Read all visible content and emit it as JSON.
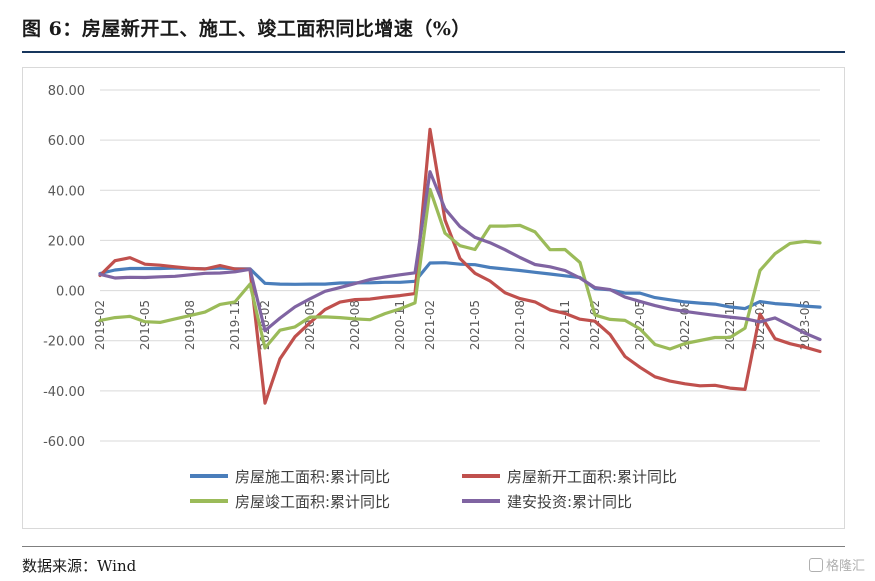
{
  "figure": {
    "title": "图 6：房屋新开工、施工、竣工面积同比增速（%）",
    "source": "数据来源：Wind",
    "watermark": "格隆汇"
  },
  "chart_data": {
    "type": "line",
    "title": "",
    "xlabel": "",
    "ylabel": "",
    "ylim": [
      -60,
      80
    ],
    "yticks": [
      -60,
      -40,
      -20,
      0,
      20,
      40,
      60,
      80
    ],
    "ytick_labels": [
      "-60.00",
      "-40.00",
      "-20.00",
      "0.00",
      "20.00",
      "40.00",
      "60.00",
      "80.00"
    ],
    "xtick_labels": [
      "2019-02",
      "2019-05",
      "2019-08",
      "2019-11",
      "2020-02",
      "2020-05",
      "2020-08",
      "2020-11",
      "2021-02",
      "2021-05",
      "2021-08",
      "2021-11",
      "2022-02",
      "2022-05",
      "2022-08",
      "2022-11",
      "2023-02",
      "2023-05"
    ],
    "x": [
      "2019-02",
      "2019-03",
      "2019-04",
      "2019-05",
      "2019-06",
      "2019-07",
      "2019-08",
      "2019-09",
      "2019-10",
      "2019-11",
      "2019-12",
      "2020-02",
      "2020-03",
      "2020-04",
      "2020-05",
      "2020-06",
      "2020-07",
      "2020-08",
      "2020-09",
      "2020-10",
      "2020-11",
      "2020-12",
      "2021-02",
      "2021-03",
      "2021-04",
      "2021-05",
      "2021-06",
      "2021-07",
      "2021-08",
      "2021-09",
      "2021-10",
      "2021-11",
      "2021-12",
      "2022-02",
      "2022-03",
      "2022-04",
      "2022-05",
      "2022-06",
      "2022-07",
      "2022-08",
      "2022-09",
      "2022-10",
      "2022-11",
      "2022-12",
      "2023-02",
      "2023-03",
      "2023-04",
      "2023-05",
      "2023-06"
    ],
    "grid": true,
    "legend_position": "bottom",
    "series": [
      {
        "name": "房屋施工面积:累计同比",
        "color": "#4a7ebb",
        "values": [
          6.8,
          8.2,
          8.8,
          8.8,
          8.8,
          9.0,
          8.8,
          8.7,
          9.0,
          8.7,
          8.7,
          2.9,
          2.6,
          2.5,
          2.6,
          2.6,
          3.0,
          3.1,
          3.1,
          3.3,
          3.3,
          3.7,
          11.0,
          11.1,
          10.5,
          10.3,
          9.2,
          8.6,
          8.0,
          7.3,
          6.6,
          5.9,
          5.2,
          0.8,
          0.3,
          -1.0,
          -1.0,
          -2.8,
          -3.7,
          -4.5,
          -5.0,
          -5.4,
          -6.5,
          -7.2,
          -4.4,
          -5.2,
          -5.6,
          -6.2,
          -6.6
        ]
      },
      {
        "name": "房屋新开工面积:累计同比",
        "color": "#c0504d",
        "values": [
          6.0,
          11.9,
          13.1,
          10.5,
          10.1,
          9.5,
          8.9,
          8.6,
          10.0,
          8.6,
          8.5,
          -44.9,
          -27.2,
          -18.4,
          -12.8,
          -7.6,
          -4.6,
          -3.6,
          -3.4,
          -2.6,
          -2.0,
          -1.2,
          64.3,
          28.2,
          12.8,
          6.9,
          3.8,
          -0.9,
          -3.2,
          -4.5,
          -7.7,
          -9.1,
          -11.4,
          -12.2,
          -17.5,
          -26.3,
          -30.6,
          -34.4,
          -36.1,
          -37.2,
          -38.0,
          -37.8,
          -38.9,
          -39.4,
          -9.4,
          -19.2,
          -21.2,
          -22.6,
          -24.3
        ]
      },
      {
        "name": "房屋竣工面积:累计同比",
        "color": "#9bbb59",
        "values": [
          -11.9,
          -10.8,
          -10.3,
          -12.4,
          -12.7,
          -11.3,
          -10.0,
          -8.6,
          -5.5,
          -4.5,
          2.6,
          -22.9,
          -15.8,
          -14.5,
          -10.6,
          -10.5,
          -10.8,
          -11.3,
          -11.6,
          -9.2,
          -7.3,
          -4.9,
          40.4,
          22.9,
          17.9,
          16.4,
          25.7,
          25.7,
          26.0,
          23.4,
          16.3,
          16.4,
          11.2,
          -9.8,
          -11.5,
          -11.9,
          -15.3,
          -21.5,
          -23.3,
          -21.1,
          -19.9,
          -18.7,
          -18.7,
          -15.0,
          8.0,
          14.7,
          18.8,
          19.6,
          19.0
        ]
      },
      {
        "name": "建安投资:累计同比",
        "color": "#8064a2",
        "values": [
          6.5,
          5.0,
          5.3,
          5.2,
          5.5,
          5.7,
          6.3,
          6.9,
          7.0,
          7.5,
          8.5,
          -16.0,
          -11.0,
          -6.5,
          -3.3,
          -0.3,
          1.2,
          2.8,
          4.4,
          5.4,
          6.3,
          7.1,
          47.4,
          32.6,
          25.5,
          21.2,
          19.1,
          16.3,
          13.2,
          10.4,
          9.5,
          8.0,
          5.0,
          1.2,
          0.4,
          -2.6,
          -4.3,
          -6.0,
          -7.4,
          -8.3,
          -9.1,
          -9.9,
          -10.6,
          -11.2,
          -12.5,
          -10.9,
          -13.9,
          -17.0,
          -19.5
        ]
      }
    ]
  }
}
